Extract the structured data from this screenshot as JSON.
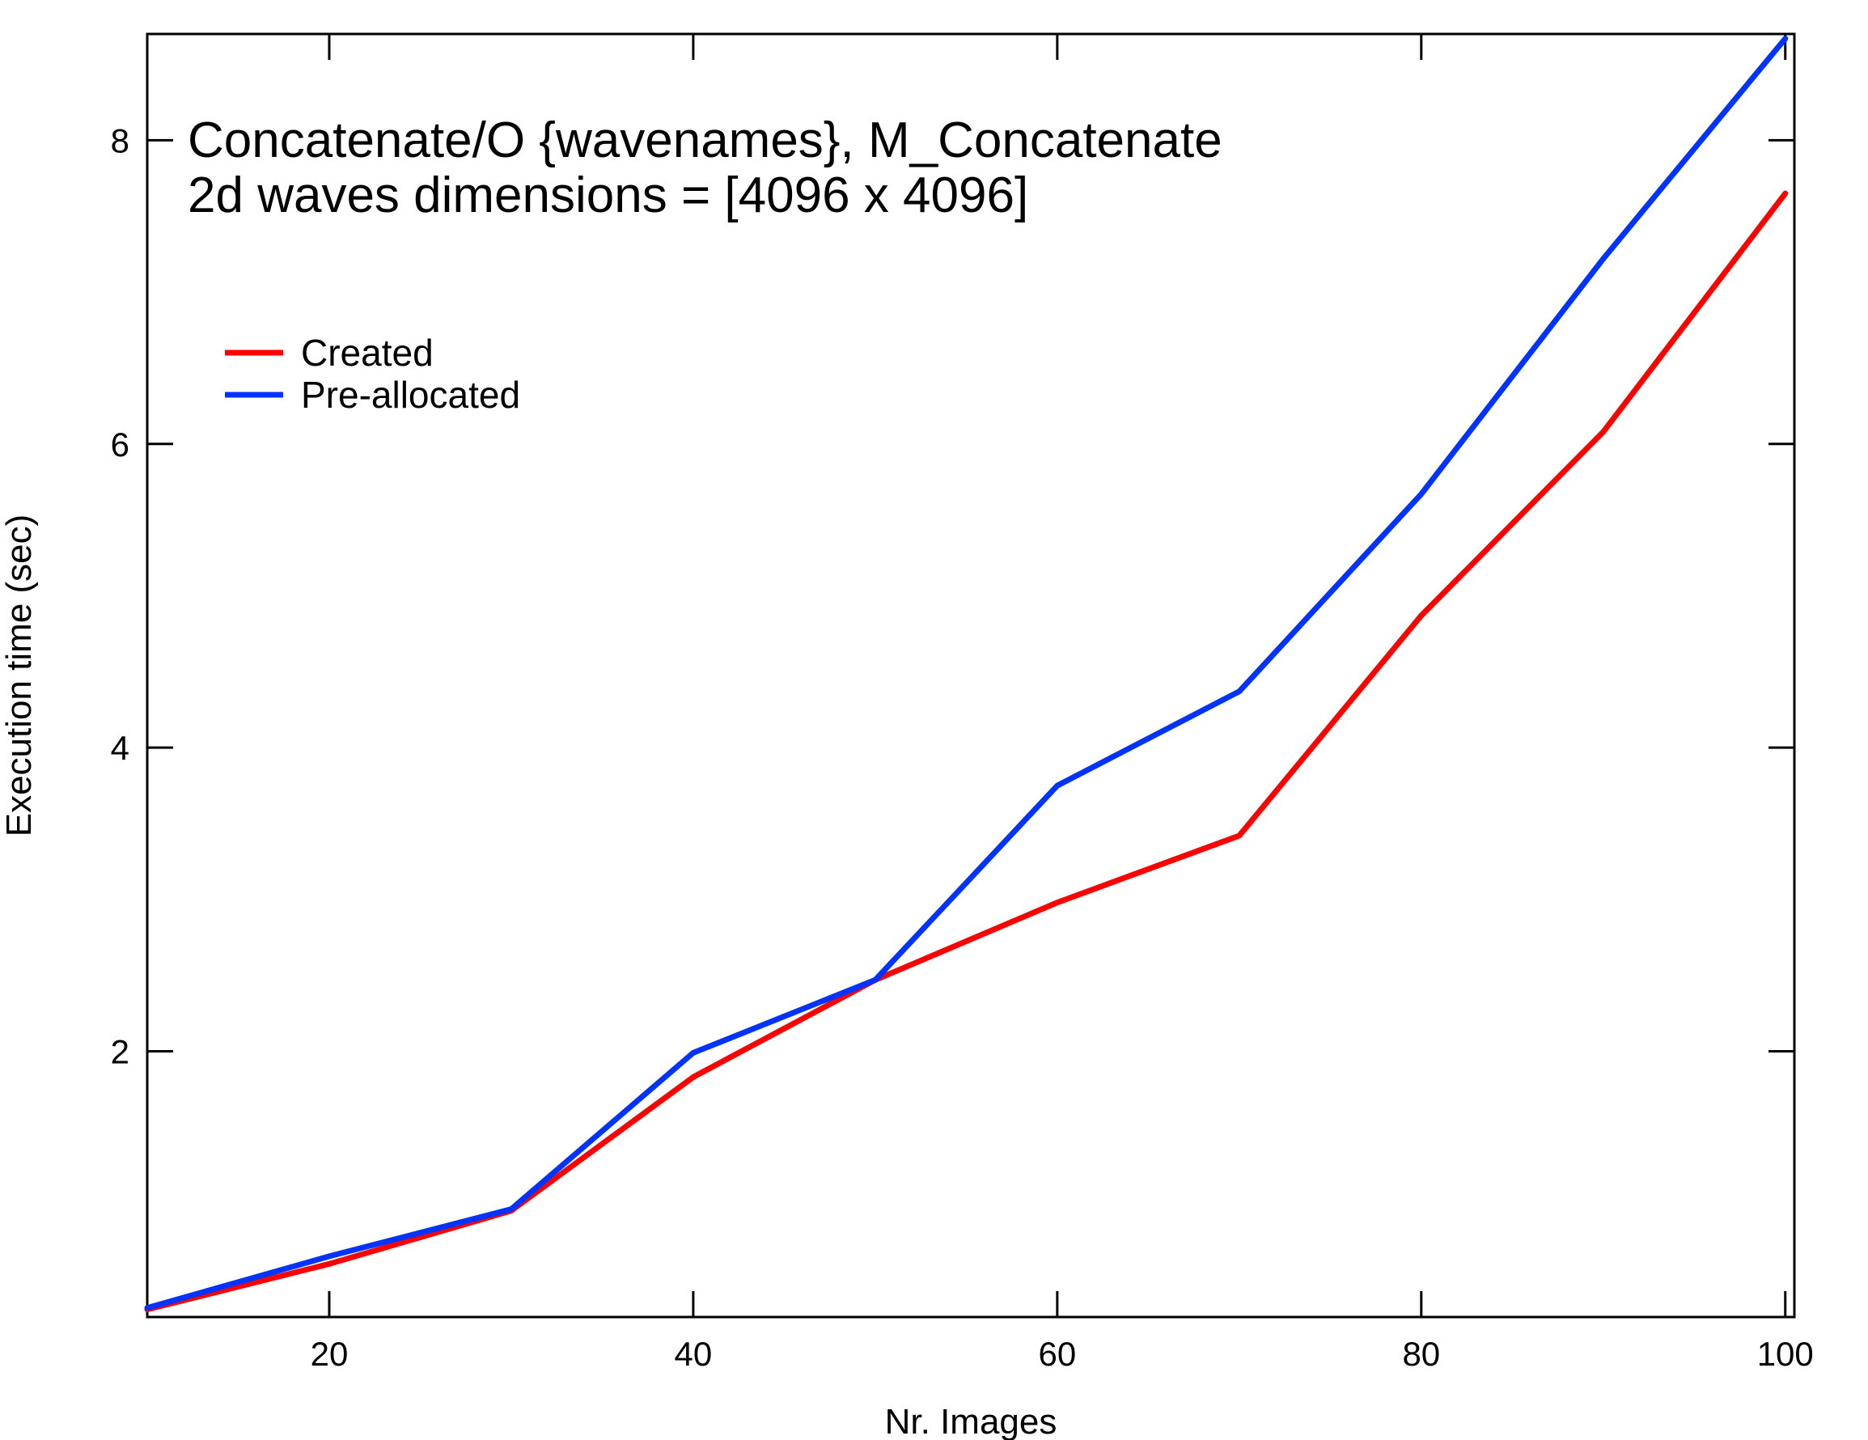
{
  "chart_data": {
    "type": "line",
    "title": "Concatenate/O {wavenames},  M_Concatenate",
    "subtitle": "2d waves dimensions = [4096 x 4096]",
    "xlabel": "Nr. Images",
    "ylabel": "Execution time (sec)",
    "xlim": [
      10,
      100.5
    ],
    "ylim": [
      0.25,
      8.7
    ],
    "xticks": [
      20,
      40,
      60,
      80,
      100
    ],
    "yticks": [
      2,
      4,
      6,
      8
    ],
    "xtick_labels": [
      "20",
      "40",
      "60",
      "80",
      "100"
    ],
    "ytick_labels": [
      "2",
      "4",
      "6",
      "8"
    ],
    "grid": false,
    "legend_position": "upper-left",
    "x": [
      10,
      20,
      30,
      40,
      50,
      60,
      70,
      80,
      90,
      100
    ],
    "series": [
      {
        "name": "Created",
        "color": "#ff0000",
        "values": [
          0.3,
          0.6,
          0.95,
          1.83,
          2.47,
          2.98,
          3.42,
          4.87,
          6.08,
          7.65
        ]
      },
      {
        "name": "Pre-allocated",
        "color": "#0033ff",
        "values": [
          0.31,
          0.65,
          0.96,
          1.99,
          2.47,
          3.75,
          4.37,
          5.67,
          7.22,
          8.67
        ]
      }
    ]
  }
}
